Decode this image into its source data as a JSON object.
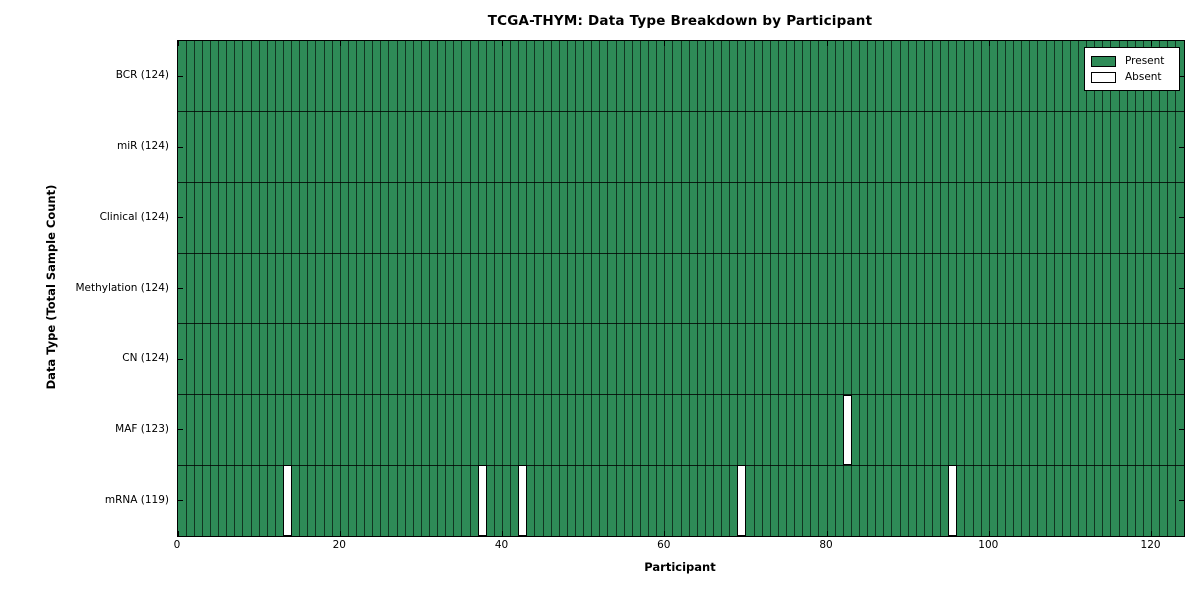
{
  "title": "TCGA-THYM: Data Type Breakdown by Participant",
  "xlabel": "Participant",
  "ylabel": "Data Type (Total Sample Count)",
  "legend": {
    "present_label": "Present",
    "absent_label": "Absent",
    "position": "upper right"
  },
  "colors": {
    "present": "#2e8b57",
    "absent": "#ffffff",
    "edge": "#000000",
    "background": "#ffffff"
  },
  "chart_data": {
    "type": "heatmap",
    "title": "TCGA-THYM: Data Type Breakdown by Participant",
    "xlabel": "Participant",
    "ylabel": "Data Type (Total Sample Count)",
    "n_participants": 124,
    "x_ticks": [
      0,
      20,
      40,
      60,
      80,
      100,
      120
    ],
    "x_range": [
      0,
      124
    ],
    "grid": "per-cell black edges",
    "legend_entries": [
      "Present",
      "Absent"
    ],
    "legend_position": "upper right",
    "rows": [
      {
        "label": "BCR (124)",
        "data_type": "BCR",
        "present_count": 124,
        "absent_participants": []
      },
      {
        "label": "miR (124)",
        "data_type": "miR",
        "present_count": 124,
        "absent_participants": []
      },
      {
        "label": "Clinical (124)",
        "data_type": "Clinical",
        "present_count": 124,
        "absent_participants": []
      },
      {
        "label": "Methylation (124)",
        "data_type": "Methylation",
        "present_count": 124,
        "absent_participants": []
      },
      {
        "label": "CN (124)",
        "data_type": "CN",
        "present_count": 124,
        "absent_participants": []
      },
      {
        "label": "MAF (123)",
        "data_type": "MAF",
        "present_count": 123,
        "absent_participants": [
          82
        ]
      },
      {
        "label": "mRNA (119)",
        "data_type": "mRNA",
        "present_count": 119,
        "absent_participants": [
          13,
          37,
          42,
          69,
          95
        ]
      }
    ]
  }
}
